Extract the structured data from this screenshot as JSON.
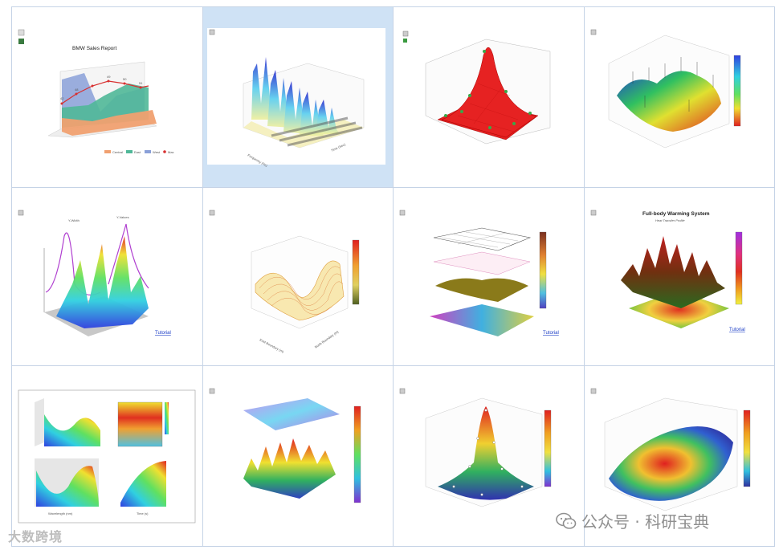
{
  "charts": {
    "c1": {
      "title": "BMW Sales Report",
      "legend": [
        "Central",
        "East",
        "West",
        "Max"
      ],
      "legend_colors": [
        "#f0a070",
        "#50b898",
        "#8aa0d8",
        "#d83030"
      ],
      "tick_values": [
        "42",
        "48",
        "49",
        "50",
        "51"
      ]
    },
    "c2": {
      "xlabel": "Frequency (Hz)",
      "ylabel": "Time (Sec)"
    },
    "c5": {
      "peak_labels": [
        "Y-Width",
        "Y-Values"
      ],
      "link": "Tutorial"
    },
    "c6": {
      "xlabel": "East Boundary (m)",
      "ylabel": "North Boundary (m)"
    },
    "c7": {
      "link": "Tutorial"
    },
    "c8": {
      "title": "Full-body Warming System",
      "subtitle": "Heat Transfer Profile",
      "link": "Tutorial"
    },
    "c9": {
      "xlabel": "Wavelength (nm)",
      "ylabel": "Time (s)"
    }
  },
  "watermarks": {
    "left": "大数跨境",
    "right": "公众号 · 科研宝典"
  },
  "colors": {
    "grid_border": "#c5d3e6",
    "selected_cell": "#cfe2f5"
  }
}
